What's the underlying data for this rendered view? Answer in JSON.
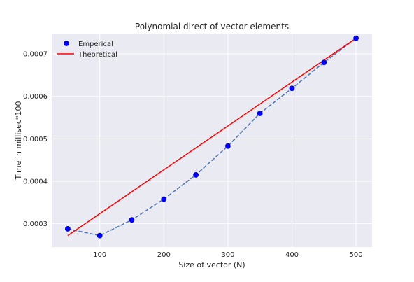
{
  "chart_data": {
    "type": "line",
    "title": "Polynomial direct of vector elements",
    "xlabel": "Size of vector (N)",
    "ylabel": "Time in millisec*100",
    "xlim": [
      25,
      525
    ],
    "ylim": [
      0.000245,
      0.000748
    ],
    "xticks": [
      100,
      200,
      300,
      400,
      500
    ],
    "yticks": [
      0.0003,
      0.0004,
      0.0005,
      0.0006,
      0.0007
    ],
    "grid": true,
    "legend_position": "top-left",
    "series": [
      {
        "name": "Emperical",
        "style": "markers with dashed connecting line",
        "marker_color": "#0000ff",
        "line_color": "#4c72b0",
        "x": [
          50,
          100,
          150,
          200,
          250,
          300,
          350,
          400,
          450,
          500
        ],
        "y": [
          0.000288,
          0.000272,
          0.000309,
          0.000358,
          0.000415,
          0.000483,
          0.00056,
          0.000619,
          0.00068,
          0.000737
        ]
      },
      {
        "name": "Theoretical",
        "style": "solid line",
        "line_color": "#ff0000",
        "x": [
          50,
          500
        ],
        "y": [
          0.000272,
          0.000737
        ]
      }
    ]
  },
  "colors": {
    "plot_background": "#eaeaf2",
    "grid": "#ffffff",
    "page_background": "#ffffff"
  }
}
